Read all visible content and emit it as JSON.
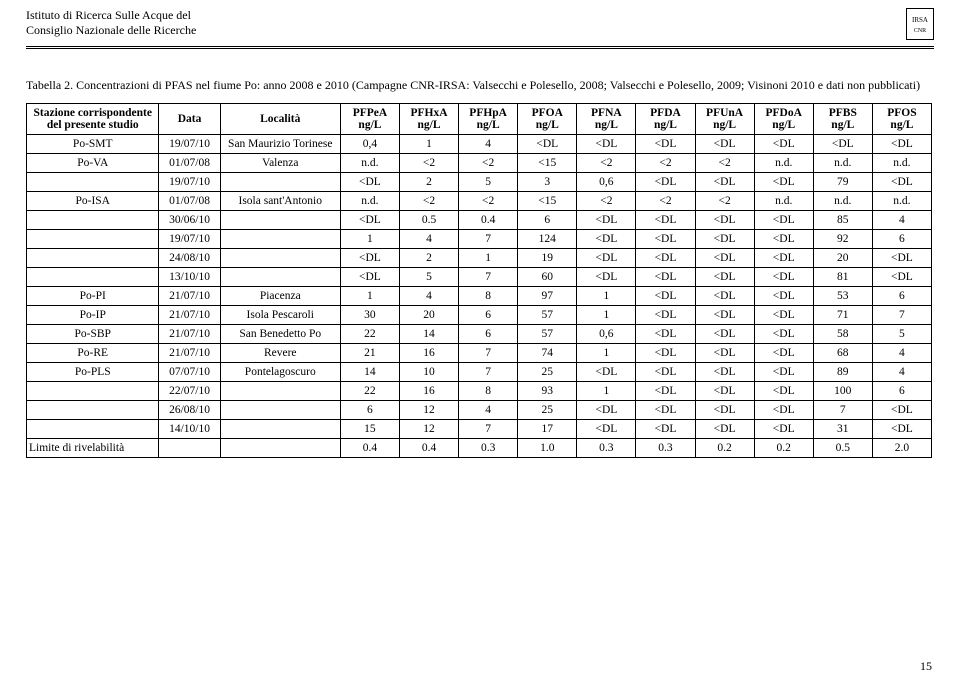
{
  "header": {
    "inst_line1": "Istituto di Ricerca Sulle Acque del",
    "inst_line2": "Consiglio Nazionale delle Ricerche",
    "logo_top": "IRSA",
    "logo_bot": "CNR"
  },
  "caption": "Tabella 2. Concentrazioni di PFAS nel fiume Po: anno 2008 e 2010 (Campagne CNR-IRSA: Valsecchi e Polesello, 2008; Valsecchi e Polesello, 2009; Visinoni 2010 e dati non pubblicati)",
  "table": {
    "head_station": "Stazione corrispondente del presente studio",
    "head_date": "Data",
    "head_loc": "Località",
    "columns": [
      {
        "l1": "PFPeA",
        "l2": "ng/L"
      },
      {
        "l1": "PFHxA",
        "l2": "ng/L"
      },
      {
        "l1": "PFHpA",
        "l2": "ng/L"
      },
      {
        "l1": "PFOA",
        "l2": "ng/L"
      },
      {
        "l1": "PFNA",
        "l2": "ng/L"
      },
      {
        "l1": "PFDA",
        "l2": "ng/L"
      },
      {
        "l1": "PFUnA",
        "l2": "ng/L"
      },
      {
        "l1": "PFDoA",
        "l2": "ng/L"
      },
      {
        "l1": "PFBS",
        "l2": "ng/L"
      },
      {
        "l1": "PFOS",
        "l2": "ng/L"
      }
    ],
    "rows": [
      {
        "station": "Po-SMT",
        "date": "19/07/10",
        "loc": "San Maurizio Torinese",
        "v": [
          "0,4",
          "1",
          "4",
          "<DL",
          "<DL",
          "<DL",
          "<DL",
          "<DL",
          "<DL",
          "<DL"
        ]
      },
      {
        "station": "Po-VA",
        "date": "01/07/08",
        "loc": "Valenza",
        "v": [
          "n.d.",
          "<2",
          "<2",
          "<15",
          "<2",
          "<2",
          "<2",
          "n.d.",
          "n.d.",
          "n.d."
        ]
      },
      {
        "station": "",
        "date": "19/07/10",
        "loc": "",
        "v": [
          "<DL",
          "2",
          "5",
          "3",
          "0,6",
          "<DL",
          "<DL",
          "<DL",
          "79",
          "<DL"
        ]
      },
      {
        "station": "Po-ISA",
        "date": "01/07/08",
        "loc": "Isola sant'Antonio",
        "v": [
          "n.d.",
          "<2",
          "<2",
          "<15",
          "<2",
          "<2",
          "<2",
          "n.d.",
          "n.d.",
          "n.d."
        ]
      },
      {
        "station": "",
        "date": "30/06/10",
        "loc": "",
        "v": [
          "<DL",
          "0.5",
          "0.4",
          "6",
          "<DL",
          "<DL",
          "<DL",
          "<DL",
          "85",
          "4"
        ]
      },
      {
        "station": "",
        "date": "19/07/10",
        "loc": "",
        "v": [
          "1",
          "4",
          "7",
          "124",
          "<DL",
          "<DL",
          "<DL",
          "<DL",
          "92",
          "6"
        ]
      },
      {
        "station": "",
        "date": "24/08/10",
        "loc": "",
        "v": [
          "<DL",
          "2",
          "1",
          "19",
          "<DL",
          "<DL",
          "<DL",
          "<DL",
          "20",
          "<DL"
        ]
      },
      {
        "station": "",
        "date": "13/10/10",
        "loc": "",
        "v": [
          "<DL",
          "5",
          "7",
          "60",
          "<DL",
          "<DL",
          "<DL",
          "<DL",
          "81",
          "<DL"
        ]
      },
      {
        "station": "Po-PI",
        "date": "21/07/10",
        "loc": "Piacenza",
        "v": [
          "1",
          "4",
          "8",
          "97",
          "1",
          "<DL",
          "<DL",
          "<DL",
          "53",
          "6"
        ]
      },
      {
        "station": "Po-IP",
        "date": "21/07/10",
        "loc": "Isola Pescaroli",
        "v": [
          "30",
          "20",
          "6",
          "57",
          "1",
          "<DL",
          "<DL",
          "<DL",
          "71",
          "7"
        ]
      },
      {
        "station": "Po-SBP",
        "date": "21/07/10",
        "loc": "San Benedetto Po",
        "v": [
          "22",
          "14",
          "6",
          "57",
          "0,6",
          "<DL",
          "<DL",
          "<DL",
          "58",
          "5"
        ]
      },
      {
        "station": "Po-RE",
        "date": "21/07/10",
        "loc": "Revere",
        "v": [
          "21",
          "16",
          "7",
          "74",
          "1",
          "<DL",
          "<DL",
          "<DL",
          "68",
          "4"
        ]
      },
      {
        "station": "Po-PLS",
        "date": "07/07/10",
        "loc": "Pontelagoscuro",
        "v": [
          "14",
          "10",
          "7",
          "25",
          "<DL",
          "<DL",
          "<DL",
          "<DL",
          "89",
          "4"
        ]
      },
      {
        "station": "",
        "date": "22/07/10",
        "loc": "",
        "v": [
          "22",
          "16",
          "8",
          "93",
          "1",
          "<DL",
          "<DL",
          "<DL",
          "100",
          "6"
        ]
      },
      {
        "station": "",
        "date": "26/08/10",
        "loc": "",
        "v": [
          "6",
          "12",
          "4",
          "25",
          "<DL",
          "<DL",
          "<DL",
          "<DL",
          "7",
          "<DL"
        ]
      },
      {
        "station": "",
        "date": "14/10/10",
        "loc": "",
        "v": [
          "15",
          "12",
          "7",
          "17",
          "<DL",
          "<DL",
          "<DL",
          "<DL",
          "31",
          "<DL"
        ]
      },
      {
        "station": "Limite di rivelabilità",
        "date": "",
        "loc": "",
        "v": [
          "0.4",
          "0.4",
          "0.3",
          "1.0",
          "0.3",
          "0.3",
          "0.2",
          "0.2",
          "0.5",
          "2.0"
        ]
      }
    ]
  },
  "page_number": "15"
}
